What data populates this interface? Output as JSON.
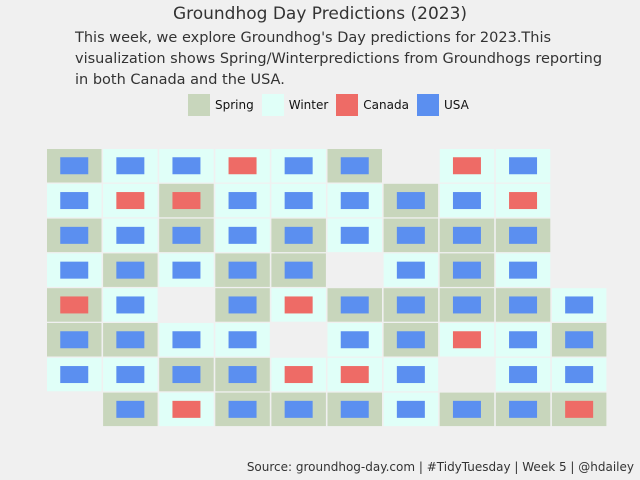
{
  "title": "Groundhog Day Predictions (2023)",
  "subtitle": "This week, we explore Groundhog's Day predictions for 2023.This visualization shows Spring/Winterpredictions from Groundhogs reporting in both Canada and the USA.",
  "source": "Source: groundhog-day.com | #TidyTuesday | Week 5 | @hdailey",
  "legend": [
    {
      "label": "Spring",
      "color": "#c8d6bc"
    },
    {
      "label": "Winter",
      "color": "#e0fff8"
    },
    {
      "label": "Canada",
      "color": "#ee6b66"
    },
    {
      "label": "USA",
      "color": "#5b8ff0"
    }
  ],
  "chart_data": {
    "type": "waffle",
    "columns": 10,
    "rows": 8,
    "prediction_colors": {
      "Spring": "#c8d6bc",
      "Winter": "#e0fff8"
    },
    "country_colors": {
      "Canada": "#ee6b66",
      "USA": "#5b8ff0"
    },
    "cells": [
      [
        "Spring",
        "USA"
      ],
      [
        "Winter",
        "USA"
      ],
      [
        "Winter",
        "USA"
      ],
      [
        "Winter",
        "Canada"
      ],
      [
        "Winter",
        "USA"
      ],
      [
        "Spring",
        "USA"
      ],
      null,
      [
        "Winter",
        "Canada"
      ],
      [
        "Winter",
        "USA"
      ],
      null,
      [
        "Winter",
        "USA"
      ],
      [
        "Winter",
        "Canada"
      ],
      [
        "Spring",
        "Canada"
      ],
      [
        "Winter",
        "USA"
      ],
      [
        "Winter",
        "USA"
      ],
      [
        "Winter",
        "USA"
      ],
      [
        "Spring",
        "USA"
      ],
      [
        "Winter",
        "USA"
      ],
      [
        "Winter",
        "Canada"
      ],
      null,
      [
        "Spring",
        "USA"
      ],
      [
        "Winter",
        "USA"
      ],
      [
        "Spring",
        "USA"
      ],
      [
        "Winter",
        "USA"
      ],
      [
        "Spring",
        "USA"
      ],
      [
        "Winter",
        "USA"
      ],
      [
        "Spring",
        "USA"
      ],
      [
        "Spring",
        "USA"
      ],
      [
        "Spring",
        "USA"
      ],
      null,
      [
        "Winter",
        "USA"
      ],
      [
        "Spring",
        "USA"
      ],
      [
        "Winter",
        "USA"
      ],
      [
        "Spring",
        "USA"
      ],
      [
        "Spring",
        "USA"
      ],
      null,
      [
        "Winter",
        "USA"
      ],
      [
        "Spring",
        "USA"
      ],
      [
        "Winter",
        "USA"
      ],
      null,
      [
        "Spring",
        "Canada"
      ],
      [
        "Winter",
        "USA"
      ],
      null,
      [
        "Spring",
        "USA"
      ],
      [
        "Winter",
        "Canada"
      ],
      [
        "Spring",
        "USA"
      ],
      [
        "Spring",
        "USA"
      ],
      [
        "Spring",
        "USA"
      ],
      [
        "Spring",
        "USA"
      ],
      [
        "Winter",
        "USA"
      ],
      [
        "Spring",
        "USA"
      ],
      [
        "Spring",
        "USA"
      ],
      [
        "Winter",
        "USA"
      ],
      [
        "Winter",
        "USA"
      ],
      null,
      [
        "Winter",
        "USA"
      ],
      [
        "Spring",
        "USA"
      ],
      [
        "Winter",
        "Canada"
      ],
      [
        "Winter",
        "USA"
      ],
      [
        "Spring",
        "USA"
      ],
      [
        "Winter",
        "USA"
      ],
      [
        "Winter",
        "USA"
      ],
      [
        "Spring",
        "USA"
      ],
      [
        "Spring",
        "USA"
      ],
      [
        "Winter",
        "Canada"
      ],
      [
        "Winter",
        "Canada"
      ],
      [
        "Winter",
        "USA"
      ],
      null,
      [
        "Winter",
        "USA"
      ],
      [
        "Winter",
        "USA"
      ],
      null,
      [
        "Spring",
        "USA"
      ],
      [
        "Winter",
        "Canada"
      ],
      [
        "Spring",
        "USA"
      ],
      [
        "Spring",
        "USA"
      ],
      [
        "Spring",
        "USA"
      ],
      [
        "Winter",
        "USA"
      ],
      [
        "Spring",
        "USA"
      ],
      [
        "Spring",
        "USA"
      ],
      [
        "Spring",
        "Canada"
      ]
    ]
  }
}
